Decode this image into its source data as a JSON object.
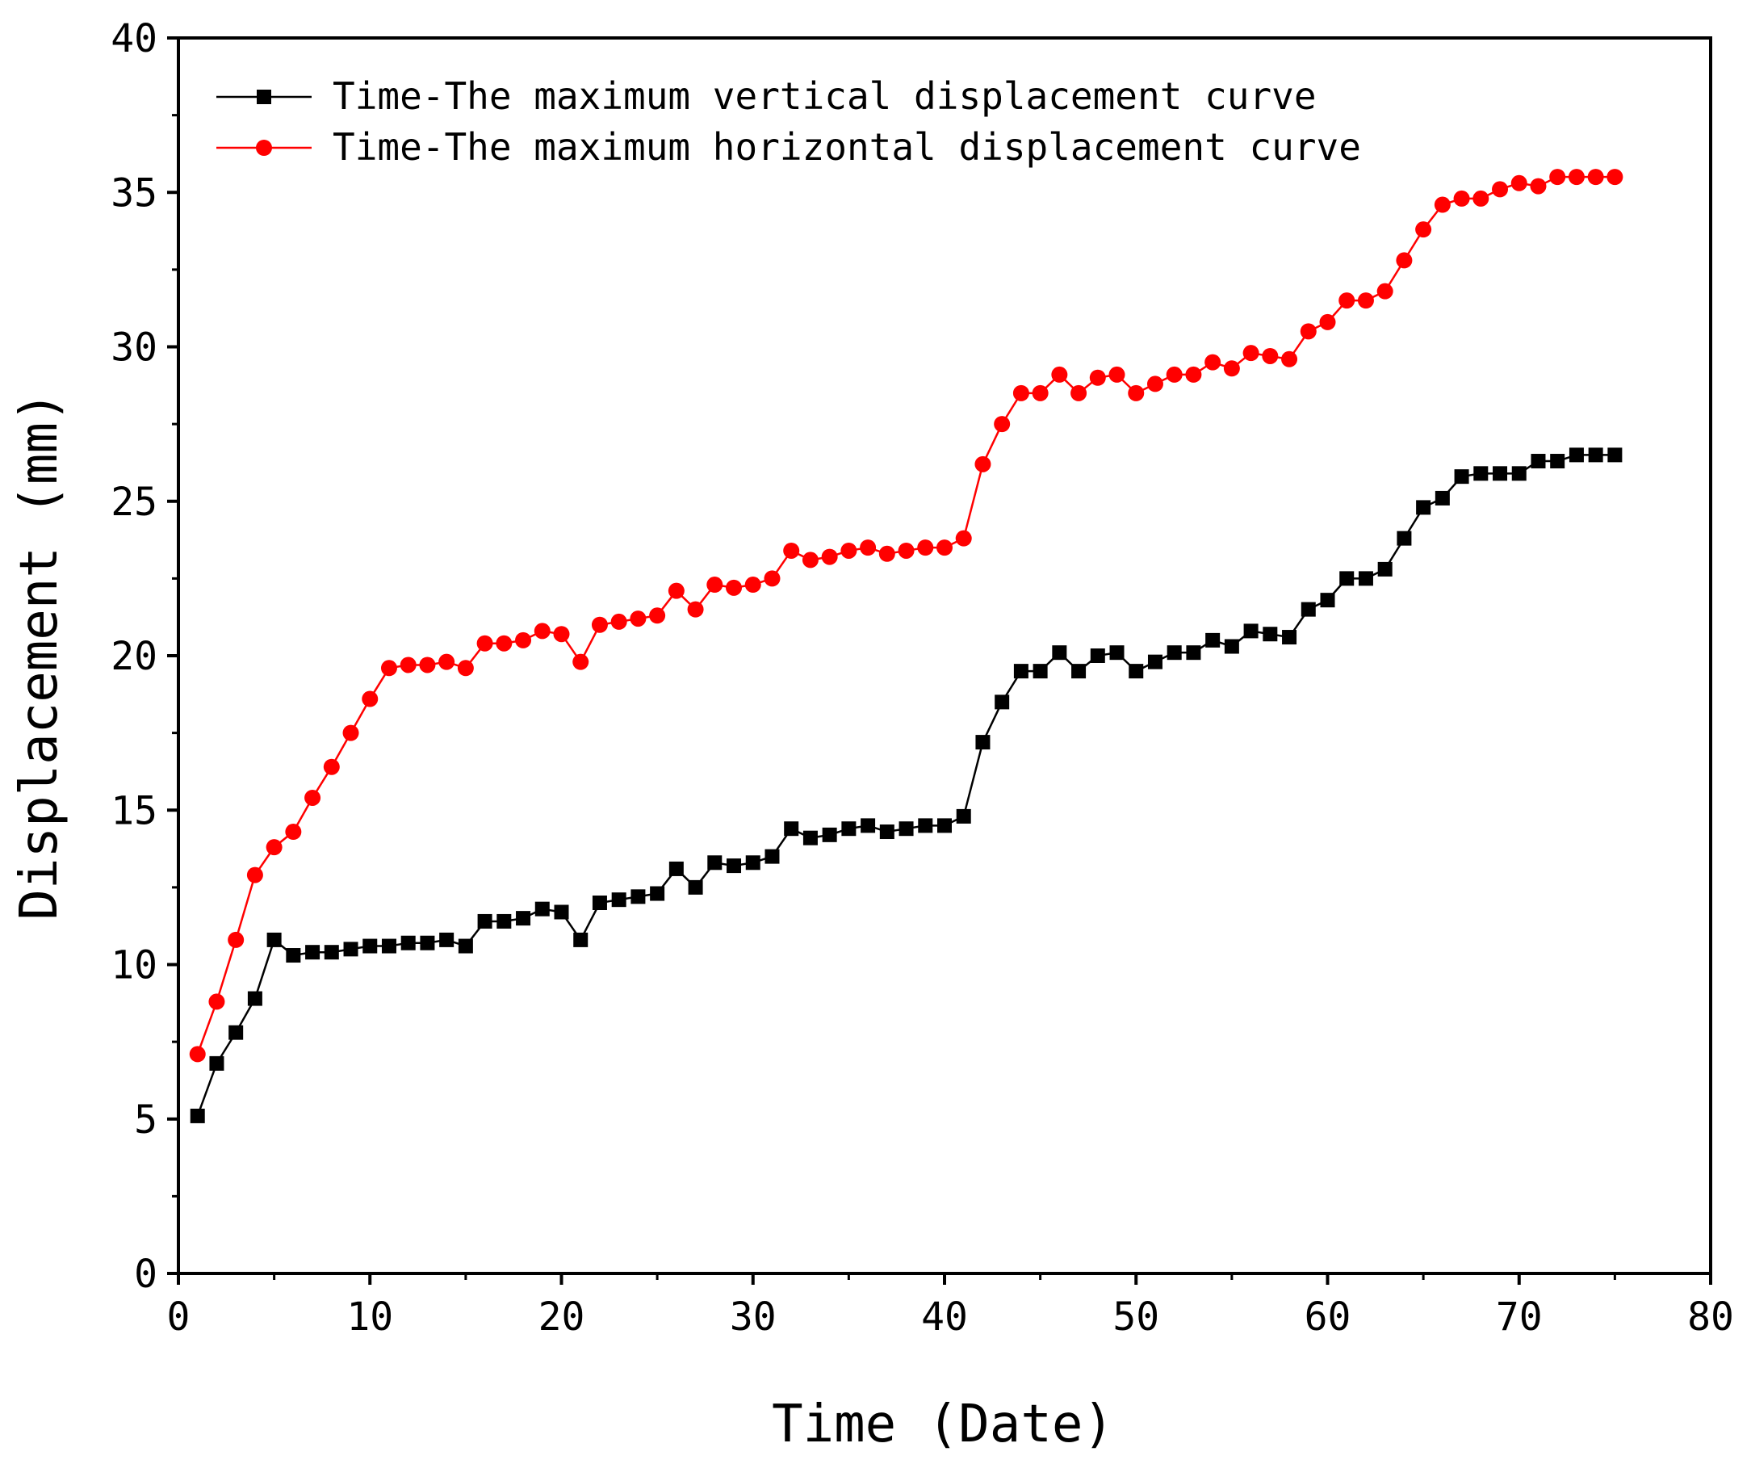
{
  "chart_data": {
    "type": "line",
    "xlabel": "Time (Date)",
    "ylabel": "Displacement (mm)",
    "xlim": [
      0,
      80
    ],
    "ylim": [
      0,
      40
    ],
    "xticks": [
      "0",
      "10",
      "20",
      "30",
      "40",
      "50",
      "60",
      "70",
      "80"
    ],
    "yticks": [
      "0",
      "5",
      "10",
      "15",
      "20",
      "25",
      "30",
      "35",
      "40"
    ],
    "grid": false,
    "legend_position": "top-left",
    "x": [
      1,
      2,
      3,
      4,
      5,
      6,
      7,
      8,
      9,
      10,
      11,
      12,
      13,
      14,
      15,
      16,
      17,
      18,
      19,
      20,
      21,
      22,
      23,
      24,
      25,
      26,
      27,
      28,
      29,
      30,
      31,
      32,
      33,
      34,
      35,
      36,
      37,
      38,
      39,
      40,
      41,
      42,
      43,
      44,
      45,
      46,
      47,
      48,
      49,
      50,
      51,
      52,
      53,
      54,
      55,
      56,
      57,
      58,
      59,
      60,
      61,
      62,
      63,
      64,
      65,
      66,
      67,
      68,
      69,
      70,
      71,
      72,
      73,
      74,
      75
    ],
    "series": [
      {
        "name": "Time-The maximum vertical displacement curve",
        "color": "#000000",
        "marker": "square",
        "values": [
          5.1,
          6.8,
          7.8,
          8.9,
          10.8,
          10.3,
          10.4,
          10.4,
          10.5,
          10.6,
          10.6,
          10.7,
          10.7,
          10.8,
          10.6,
          11.4,
          11.4,
          11.5,
          11.8,
          11.7,
          10.8,
          12.0,
          12.1,
          12.2,
          12.3,
          13.1,
          12.5,
          13.3,
          13.2,
          13.3,
          13.5,
          14.4,
          14.1,
          14.2,
          14.4,
          14.5,
          14.3,
          14.4,
          14.5,
          14.5,
          14.8,
          17.2,
          18.5,
          19.5,
          19.5,
          20.1,
          19.5,
          20.0,
          20.1,
          19.5,
          19.8,
          20.1,
          20.1,
          20.5,
          20.3,
          20.8,
          20.7,
          20.6,
          21.5,
          21.8,
          22.5,
          22.5,
          22.8,
          23.8,
          24.8,
          25.1,
          25.8,
          25.9,
          25.9,
          25.9,
          26.3,
          26.3,
          26.5,
          26.5,
          26.5
        ]
      },
      {
        "name": "Time-The maximum horizontal displacement curve",
        "color": "#ff0000",
        "marker": "circle",
        "values": [
          7.1,
          8.8,
          10.8,
          12.9,
          13.8,
          14.3,
          15.4,
          16.4,
          17.5,
          18.6,
          19.6,
          19.7,
          19.7,
          19.8,
          19.6,
          20.4,
          20.4,
          20.5,
          20.8,
          20.7,
          19.8,
          21.0,
          21.1,
          21.2,
          21.3,
          22.1,
          21.5,
          22.3,
          22.2,
          22.3,
          22.5,
          23.4,
          23.1,
          23.2,
          23.4,
          23.5,
          23.3,
          23.4,
          23.5,
          23.5,
          23.8,
          26.2,
          27.5,
          28.5,
          28.5,
          29.1,
          28.5,
          29.0,
          29.1,
          28.5,
          28.8,
          29.1,
          29.1,
          29.5,
          29.3,
          29.8,
          29.7,
          29.6,
          30.5,
          30.8,
          31.5,
          31.5,
          31.8,
          32.8,
          33.8,
          34.6,
          34.8,
          34.8,
          35.1,
          35.3,
          35.2,
          35.5,
          35.5,
          35.5,
          35.5
        ]
      }
    ]
  }
}
